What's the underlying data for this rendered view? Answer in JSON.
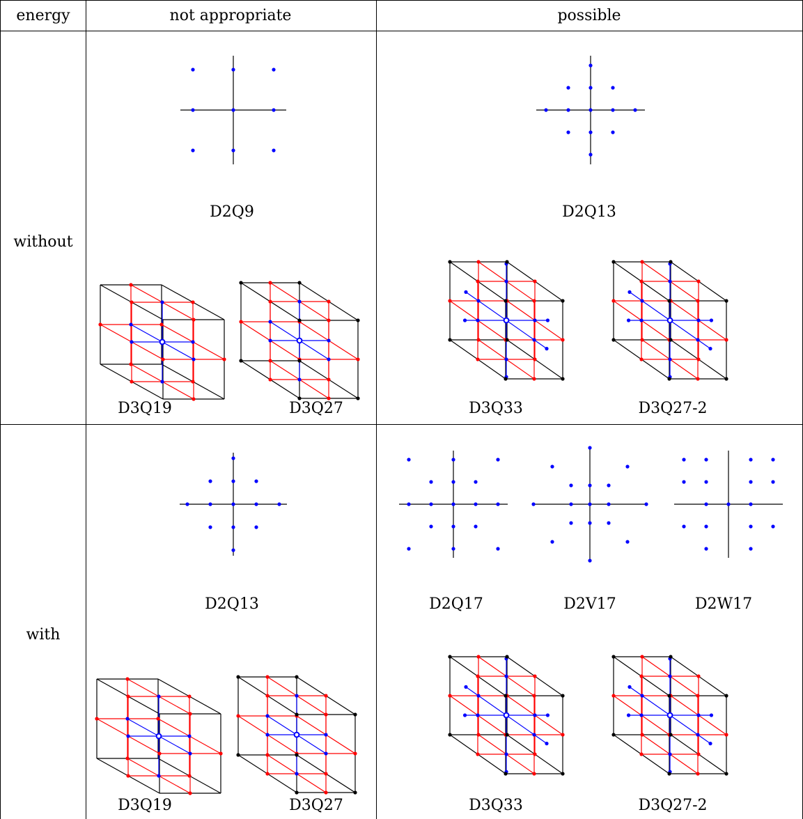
{
  "table": {
    "headers": [
      "energy",
      "not appropriate",
      "possible"
    ],
    "rows": [
      {
        "energy": "without",
        "not_appropriate": {
          "two_d": [
            "D2Q9"
          ],
          "three_d": [
            "D3Q19",
            "D3Q27"
          ]
        },
        "possible": {
          "two_d": [
            "D2Q13"
          ],
          "three_d": [
            "D3Q33",
            "D3Q27-2"
          ]
        }
      },
      {
        "energy": "with",
        "not_appropriate": {
          "two_d": [
            "D2Q13"
          ],
          "three_d": [
            "D3Q19",
            "D3Q27"
          ]
        },
        "possible": {
          "two_d": [
            "D2Q17",
            "D2V17",
            "D2W17"
          ],
          "three_d": [
            "D3Q33",
            "D3Q27-2"
          ]
        }
      }
    ]
  },
  "colors": {
    "blue": "#0000ff",
    "red": "#ff0000",
    "black": "#000000"
  }
}
